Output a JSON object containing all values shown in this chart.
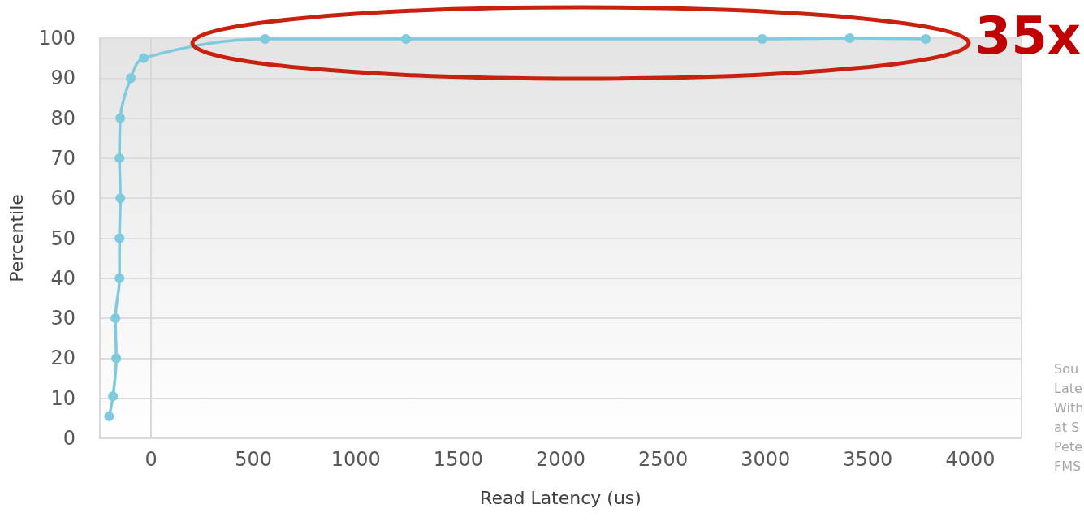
{
  "chart_data": {
    "type": "line",
    "xlabel": "Read Latency (us)",
    "ylabel": "Percentile",
    "annotations": [
      "35x",
      "Sou\nLate\nWith\nat S\nPete\nFMS"
    ],
    "series": [
      {
        "color": "#7ecadf",
        "x": [
          -205,
          -186,
          -170,
          -174,
          -154,
          -154,
          -150,
          -154,
          -150,
          -99,
          -36,
          557,
          1245,
          2984,
          3411,
          3783
        ],
        "values": [
          5.5,
          10.5,
          20,
          30,
          40,
          50,
          60,
          70,
          80,
          90,
          95,
          99.8,
          99.8,
          99.8,
          100,
          99.8
        ]
      }
    ],
    "xlim": [
      -250,
      4250
    ],
    "xticks": [
      0,
      500,
      1000,
      1500,
      2000,
      2500,
      3000,
      3500,
      4000
    ],
    "ylim": [
      0,
      100
    ],
    "yticks": [
      0,
      10,
      20,
      30,
      40,
      50,
      60,
      70,
      80,
      90,
      100
    ],
    "grid": "y",
    "marker": "circle",
    "line_style": "solid"
  }
}
